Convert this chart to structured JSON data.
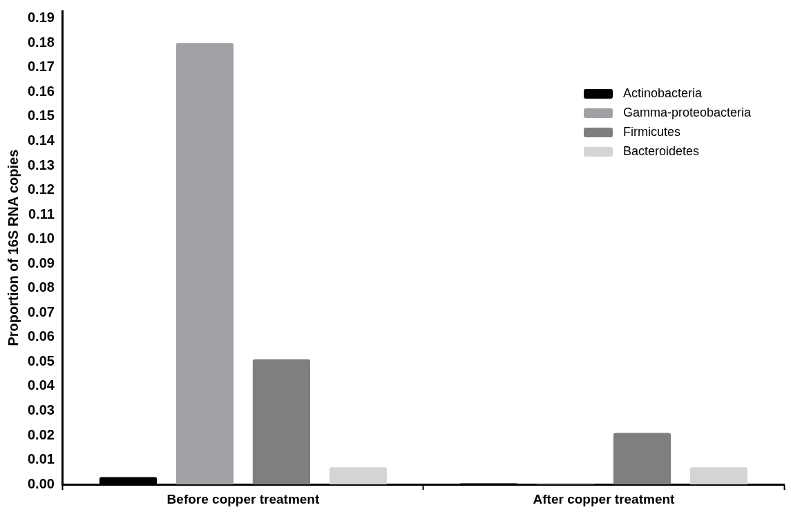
{
  "chart_data": {
    "type": "bar",
    "ylabel": "Proportion of 16S RNA copies",
    "categories": [
      "Before copper treatment",
      "After copper treatment"
    ],
    "series": [
      {
        "name": "Actinobacteria",
        "color": "#000000",
        "values": [
          0.003,
          0.0005
        ]
      },
      {
        "name": "Gamma-proteobacteria",
        "color": "#a1a0a4",
        "values": [
          0.18,
          0.0005
        ]
      },
      {
        "name": "Firmicutes",
        "color": "#7f7f7f",
        "values": [
          0.051,
          0.021
        ]
      },
      {
        "name": "Bacteroidetes",
        "color": "#d4d4d4",
        "values": [
          0.007,
          0.007
        ]
      }
    ],
    "ylim": [
      0,
      0.193
    ],
    "yticks": [
      {
        "value": 0,
        "label": "0.00"
      },
      0.01,
      0.02,
      0.03,
      0.04,
      0.05,
      0.06,
      0.07,
      0.08,
      0.09,
      {
        "value": 0.1,
        "label": "0.10"
      },
      0.11,
      0.12,
      0.13,
      0.14,
      0.15,
      0.16,
      0.17,
      0.18,
      0.19
    ],
    "grid": false,
    "legend": "top right"
  }
}
